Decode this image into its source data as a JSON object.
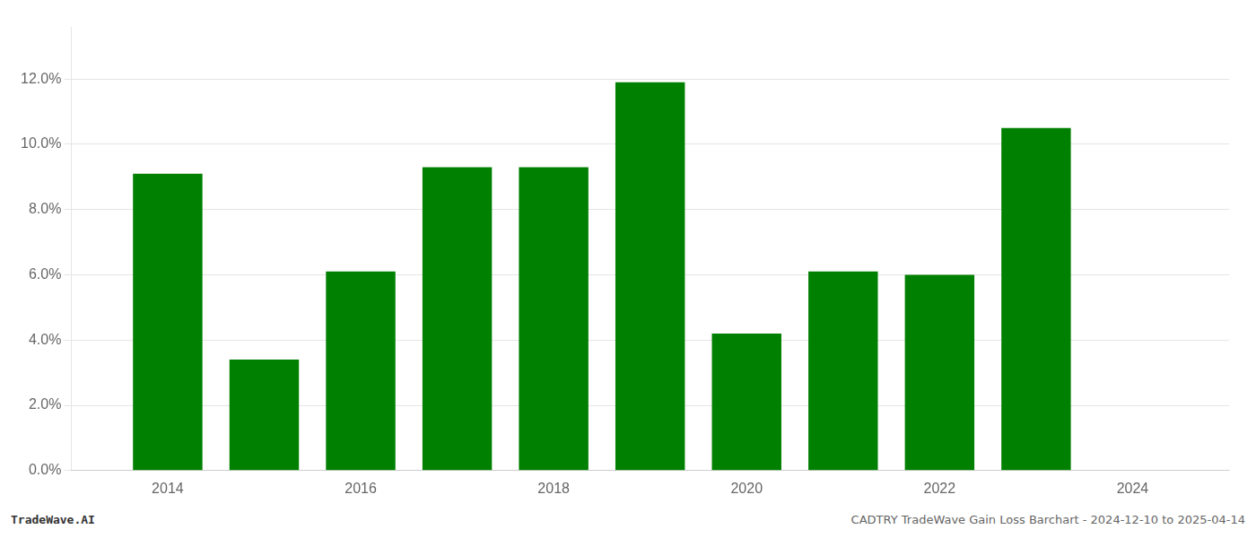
{
  "chart_data": {
    "type": "bar",
    "x": [
      2014,
      2015,
      2016,
      2017,
      2018,
      2019,
      2020,
      2021,
      2022,
      2023
    ],
    "values": [
      0.091,
      0.034,
      0.061,
      0.093,
      0.093,
      0.119,
      0.042,
      0.061,
      0.06,
      0.105
    ],
    "color": "#008000",
    "xlim": [
      2013.0,
      2025.0
    ],
    "xticks": [
      2014,
      2016,
      2018,
      2020,
      2022,
      2024
    ],
    "ylim": [
      0.0,
      0.136
    ],
    "yticks": [
      {
        "value": 0.0,
        "label": "0.0%"
      },
      {
        "value": 0.02,
        "label": "2.0%"
      },
      {
        "value": 0.04,
        "label": "4.0%"
      },
      {
        "value": 0.06,
        "label": "6.0%"
      },
      {
        "value": 0.08,
        "label": "8.0%"
      },
      {
        "value": 0.1,
        "label": "10.0%"
      },
      {
        "value": 0.12,
        "label": "12.0%"
      }
    ],
    "grid": "y",
    "annotations": [
      "TradeWave.AI",
      "CADTRY TradeWave Gain Loss Barchart - 2024-12-10 to 2025-04-14"
    ]
  }
}
